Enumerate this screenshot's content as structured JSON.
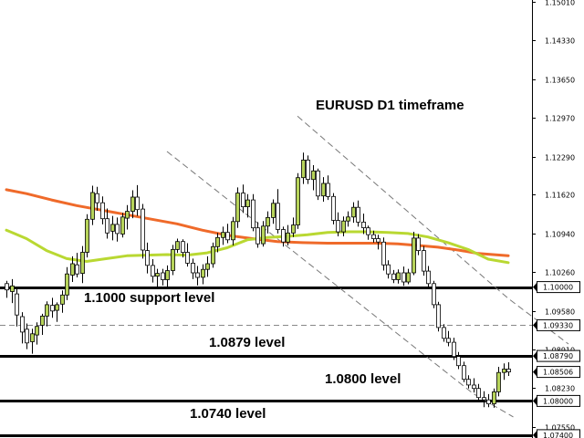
{
  "chart_data": {
    "type": "candlestick",
    "title": "EURUSD D1 timeframe",
    "ylim": [
      1.0735,
      1.1504
    ],
    "grid": false,
    "colors": {
      "candle_up": "#b7d45a",
      "candle_down": "#ffffff",
      "wick": "#000000",
      "ma_fast": "#b9d832",
      "ma_slow": "#ef6a2a",
      "level_line": "#000000",
      "channel_line": "#777777"
    },
    "y_ticks": [
      "1.15010",
      "1.14330",
      "1.13650",
      "1.12970",
      "1.12290",
      "1.11620",
      "1.10940",
      "1.10260",
      "1.09580",
      "1.08910",
      "1.08230",
      "1.07550"
    ],
    "price_labels": [
      {
        "value": 1.1,
        "label": "1.10000",
        "style": "solid"
      },
      {
        "value": 1.0933,
        "label": "1.09330",
        "style": "dashed"
      },
      {
        "value": 1.0879,
        "label": "1.08790",
        "style": "solid"
      },
      {
        "value": 1.0851,
        "label": "1.08506",
        "style": "marker"
      },
      {
        "value": 1.08,
        "label": "1.08000",
        "style": "solid"
      },
      {
        "value": 1.074,
        "label": "1.07400",
        "style": "solid"
      }
    ],
    "annotations": [
      {
        "text": "1.1000 support level",
        "value": 1.1
      },
      {
        "text": "1.0879 level",
        "value": 1.0879
      },
      {
        "text": "1.0800 level",
        "value": 1.08
      },
      {
        "text": "1.0740 level",
        "value": 1.074
      }
    ],
    "candles": [
      [
        1.1006,
        1.1011,
        1.0981,
        1.0995
      ],
      [
        1.0992,
        1.1014,
        1.0972,
        1.1002
      ],
      [
        1.0988,
        1.0998,
        1.0931,
        1.0951
      ],
      [
        1.0948,
        1.0956,
        1.0901,
        1.0921
      ],
      [
        1.0926,
        1.0936,
        1.0891,
        1.0902
      ],
      [
        1.0904,
        1.0927,
        1.0883,
        1.0918
      ],
      [
        1.0916,
        1.0938,
        1.0899,
        1.0931
      ],
      [
        1.0933,
        1.0953,
        1.0916,
        1.0949
      ],
      [
        1.0949,
        1.0975,
        1.0931,
        1.0969
      ],
      [
        1.0968,
        1.0981,
        1.0946,
        1.0958
      ],
      [
        1.0959,
        1.0973,
        1.0939,
        1.0969
      ],
      [
        1.097,
        1.0994,
        1.0955,
        1.0986
      ],
      [
        1.0986,
        1.1035,
        1.0977,
        1.1023
      ],
      [
        1.1021,
        1.1054,
        1.1009,
        1.1041
      ],
      [
        1.1039,
        1.106,
        1.1017,
        1.1023
      ],
      [
        1.1024,
        1.1072,
        1.1007,
        1.1061
      ],
      [
        1.1061,
        1.1128,
        1.1052,
        1.1119
      ],
      [
        1.1119,
        1.1178,
        1.1109,
        1.1166
      ],
      [
        1.1164,
        1.1176,
        1.1134,
        1.1148
      ],
      [
        1.1148,
        1.1159,
        1.111,
        1.112
      ],
      [
        1.112,
        1.1138,
        1.1085,
        1.1095
      ],
      [
        1.1098,
        1.1125,
        1.1082,
        1.111
      ],
      [
        1.111,
        1.1122,
        1.108,
        1.1094
      ],
      [
        1.1093,
        1.113,
        1.1087,
        1.1123
      ],
      [
        1.1121,
        1.1144,
        1.1101,
        1.1133
      ],
      [
        1.1133,
        1.117,
        1.1121,
        1.1158
      ],
      [
        1.1158,
        1.1179,
        1.1125,
        1.1136
      ],
      [
        1.1137,
        1.1146,
        1.105,
        1.1065
      ],
      [
        1.1064,
        1.1078,
        1.1024,
        1.1038
      ],
      [
        1.1038,
        1.1049,
        1.1008,
        1.1019
      ],
      [
        1.1019,
        1.1032,
        1.0998,
        1.1024
      ],
      [
        1.1025,
        1.1032,
        1.1003,
        1.1013
      ],
      [
        1.1013,
        1.1038,
        1.1,
        1.1029
      ],
      [
        1.1029,
        1.1074,
        1.1021,
        1.1066
      ],
      [
        1.1066,
        1.1085,
        1.106,
        1.108
      ],
      [
        1.108,
        1.1084,
        1.1052,
        1.1061
      ],
      [
        1.1061,
        1.1077,
        1.1036,
        1.1042
      ],
      [
        1.1042,
        1.105,
        1.1014,
        1.1025
      ],
      [
        1.1025,
        1.1037,
        1.1003,
        1.1017
      ],
      [
        1.1017,
        1.104,
        1.1005,
        1.1031
      ],
      [
        1.1031,
        1.1054,
        1.1018,
        1.1041
      ],
      [
        1.1041,
        1.1078,
        1.1034,
        1.1071
      ],
      [
        1.1071,
        1.1095,
        1.1061,
        1.1087
      ],
      [
        1.1087,
        1.1106,
        1.1074,
        1.1096
      ],
      [
        1.1096,
        1.1111,
        1.1077,
        1.1083
      ],
      [
        1.1083,
        1.1123,
        1.1073,
        1.1115
      ],
      [
        1.1115,
        1.1175,
        1.1104,
        1.1165
      ],
      [
        1.1165,
        1.118,
        1.113,
        1.1141
      ],
      [
        1.1141,
        1.1163,
        1.1122,
        1.1153
      ],
      [
        1.1153,
        1.1163,
        1.1098,
        1.1104
      ],
      [
        1.1104,
        1.1114,
        1.1069,
        1.1076
      ],
      [
        1.1076,
        1.1116,
        1.1071,
        1.1107
      ],
      [
        1.1107,
        1.1133,
        1.1094,
        1.1122
      ],
      [
        1.1122,
        1.1154,
        1.1111,
        1.1147
      ],
      [
        1.1147,
        1.1172,
        1.1094,
        1.1101
      ],
      [
        1.1101,
        1.1106,
        1.1071,
        1.1079
      ],
      [
        1.1079,
        1.1109,
        1.1073,
        1.1095
      ],
      [
        1.1095,
        1.1122,
        1.1088,
        1.1109
      ],
      [
        1.1109,
        1.12,
        1.1102,
        1.1192
      ],
      [
        1.1192,
        1.1236,
        1.1181,
        1.1223
      ],
      [
        1.1223,
        1.1231,
        1.1181,
        1.1189
      ],
      [
        1.1189,
        1.1214,
        1.117,
        1.1204
      ],
      [
        1.1204,
        1.1208,
        1.1153,
        1.116
      ],
      [
        1.116,
        1.1193,
        1.115,
        1.1182
      ],
      [
        1.1182,
        1.1196,
        1.1153,
        1.1159
      ],
      [
        1.1159,
        1.1165,
        1.111,
        1.1117
      ],
      [
        1.1117,
        1.1131,
        1.1089,
        1.1097
      ],
      [
        1.1097,
        1.1124,
        1.1089,
        1.1116
      ],
      [
        1.1116,
        1.1133,
        1.1106,
        1.1123
      ],
      [
        1.1123,
        1.1149,
        1.1113,
        1.114
      ],
      [
        1.114,
        1.1152,
        1.1106,
        1.1114
      ],
      [
        1.1114,
        1.1129,
        1.1093,
        1.1104
      ],
      [
        1.1104,
        1.1108,
        1.1083,
        1.1092
      ],
      [
        1.1092,
        1.1099,
        1.1078,
        1.1085
      ],
      [
        1.1085,
        1.1092,
        1.1066,
        1.1079
      ],
      [
        1.1079,
        1.1087,
        1.1029,
        1.1039
      ],
      [
        1.1039,
        1.1047,
        1.1015,
        1.1023
      ],
      [
        1.1023,
        1.103,
        1.1007,
        1.1013
      ],
      [
        1.1013,
        1.1031,
        1.1006,
        1.1025
      ],
      [
        1.1025,
        1.1036,
        1.1002,
        1.1009
      ],
      [
        1.1009,
        1.1032,
        1.1005,
        1.1025
      ],
      [
        1.1025,
        1.1097,
        1.1021,
        1.1086
      ],
      [
        1.1086,
        1.1093,
        1.1056,
        1.1064
      ],
      [
        1.1064,
        1.1072,
        1.102,
        1.1028
      ],
      [
        1.1028,
        1.1037,
        1.0998,
        1.1006
      ],
      [
        1.1006,
        1.1011,
        1.0963,
        1.0969
      ],
      [
        1.0969,
        1.0974,
        1.0922,
        1.0929
      ],
      [
        1.0929,
        1.0935,
        1.0904,
        1.091
      ],
      [
        1.091,
        1.0923,
        1.0896,
        1.0903
      ],
      [
        1.0903,
        1.0911,
        1.0872,
        1.0878
      ],
      [
        1.0878,
        1.0886,
        1.0856,
        1.0862
      ],
      [
        1.0862,
        1.0869,
        1.0833,
        1.0838
      ],
      [
        1.0838,
        1.0845,
        1.0822,
        1.0828
      ],
      [
        1.0828,
        1.084,
        1.0815,
        1.0822
      ],
      [
        1.0822,
        1.083,
        1.0798,
        1.0806
      ],
      [
        1.0806,
        1.0817,
        1.0789,
        1.0802
      ],
      [
        1.0802,
        1.0812,
        1.0789,
        1.0795
      ],
      [
        1.0795,
        1.0822,
        1.0788,
        1.0816
      ],
      [
        1.0816,
        1.086,
        1.0808,
        1.085
      ],
      [
        1.085,
        1.0866,
        1.0837,
        1.0856
      ],
      [
        1.0856,
        1.0868,
        1.0844,
        1.0851
      ]
    ],
    "ma_slow": [
      [
        0,
        1.1171
      ],
      [
        4,
        1.1164
      ],
      [
        9,
        1.1153
      ],
      [
        14,
        1.1143
      ],
      [
        19,
        1.1135
      ],
      [
        24,
        1.1127
      ],
      [
        29,
        1.1119
      ],
      [
        34,
        1.1111
      ],
      [
        39,
        1.11
      ],
      [
        44,
        1.1091
      ],
      [
        49,
        1.1085
      ],
      [
        54,
        1.108
      ],
      [
        59,
        1.1078
      ],
      [
        64,
        1.1077
      ],
      [
        69,
        1.1077
      ],
      [
        74,
        1.1077
      ],
      [
        78,
        1.1076
      ],
      [
        82,
        1.1073
      ],
      [
        86,
        1.107
      ],
      [
        90,
        1.1065
      ],
      [
        94,
        1.1059
      ],
      [
        100,
        1.1055
      ]
    ],
    "ma_fast": [
      [
        0,
        1.11
      ],
      [
        4,
        1.1085
      ],
      [
        8,
        1.1064
      ],
      [
        12,
        1.105
      ],
      [
        16,
        1.1045
      ],
      [
        20,
        1.105
      ],
      [
        24,
        1.1055
      ],
      [
        28,
        1.1056
      ],
      [
        32,
        1.1057
      ],
      [
        36,
        1.1056
      ],
      [
        40,
        1.106
      ],
      [
        44,
        1.1069
      ],
      [
        48,
        1.1083
      ],
      [
        52,
        1.1087
      ],
      [
        56,
        1.1089
      ],
      [
        60,
        1.1092
      ],
      [
        64,
        1.1096
      ],
      [
        68,
        1.1097
      ],
      [
        72,
        1.1097
      ],
      [
        76,
        1.1096
      ],
      [
        80,
        1.1094
      ],
      [
        84,
        1.1088
      ],
      [
        88,
        1.1078
      ],
      [
        92,
        1.1066
      ],
      [
        96,
        1.1049
      ],
      [
        100,
        1.1043
      ]
    ],
    "channel_lines": [
      [
        [
          32,
          1.1238
        ],
        [
          93,
          1.0813
        ],
        [
          101,
          1.0772
        ]
      ],
      [
        [
          58,
          1.13
        ],
        [
          100,
          1.098
        ],
        [
          112,
          1.09
        ]
      ]
    ]
  }
}
